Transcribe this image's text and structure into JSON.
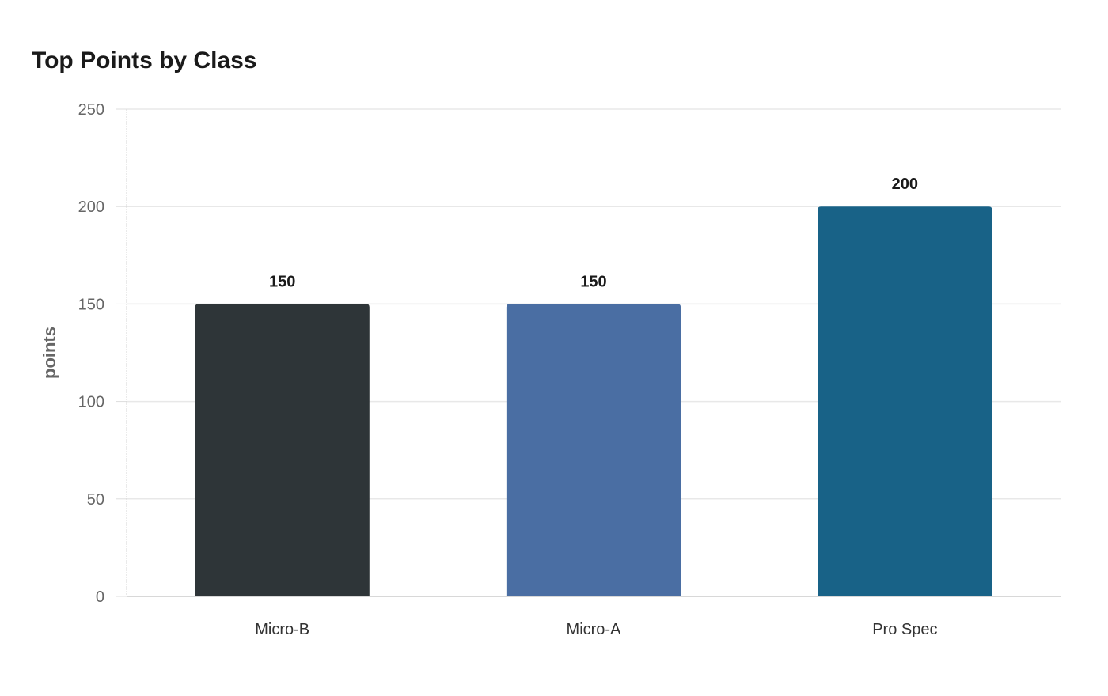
{
  "chart_data": {
    "type": "bar",
    "title": "Top Points by Class",
    "xlabel": "",
    "ylabel": "points",
    "categories": [
      "Micro-B",
      "Micro-A",
      "Pro Spec"
    ],
    "values": [
      150,
      150,
      200
    ],
    "colors": [
      "#2e3538",
      "#4a6ea3",
      "#186287"
    ],
    "ylim": [
      0,
      250
    ],
    "yticks": [
      0,
      50,
      100,
      150,
      200,
      250
    ],
    "grid": true,
    "legend": "none"
  }
}
